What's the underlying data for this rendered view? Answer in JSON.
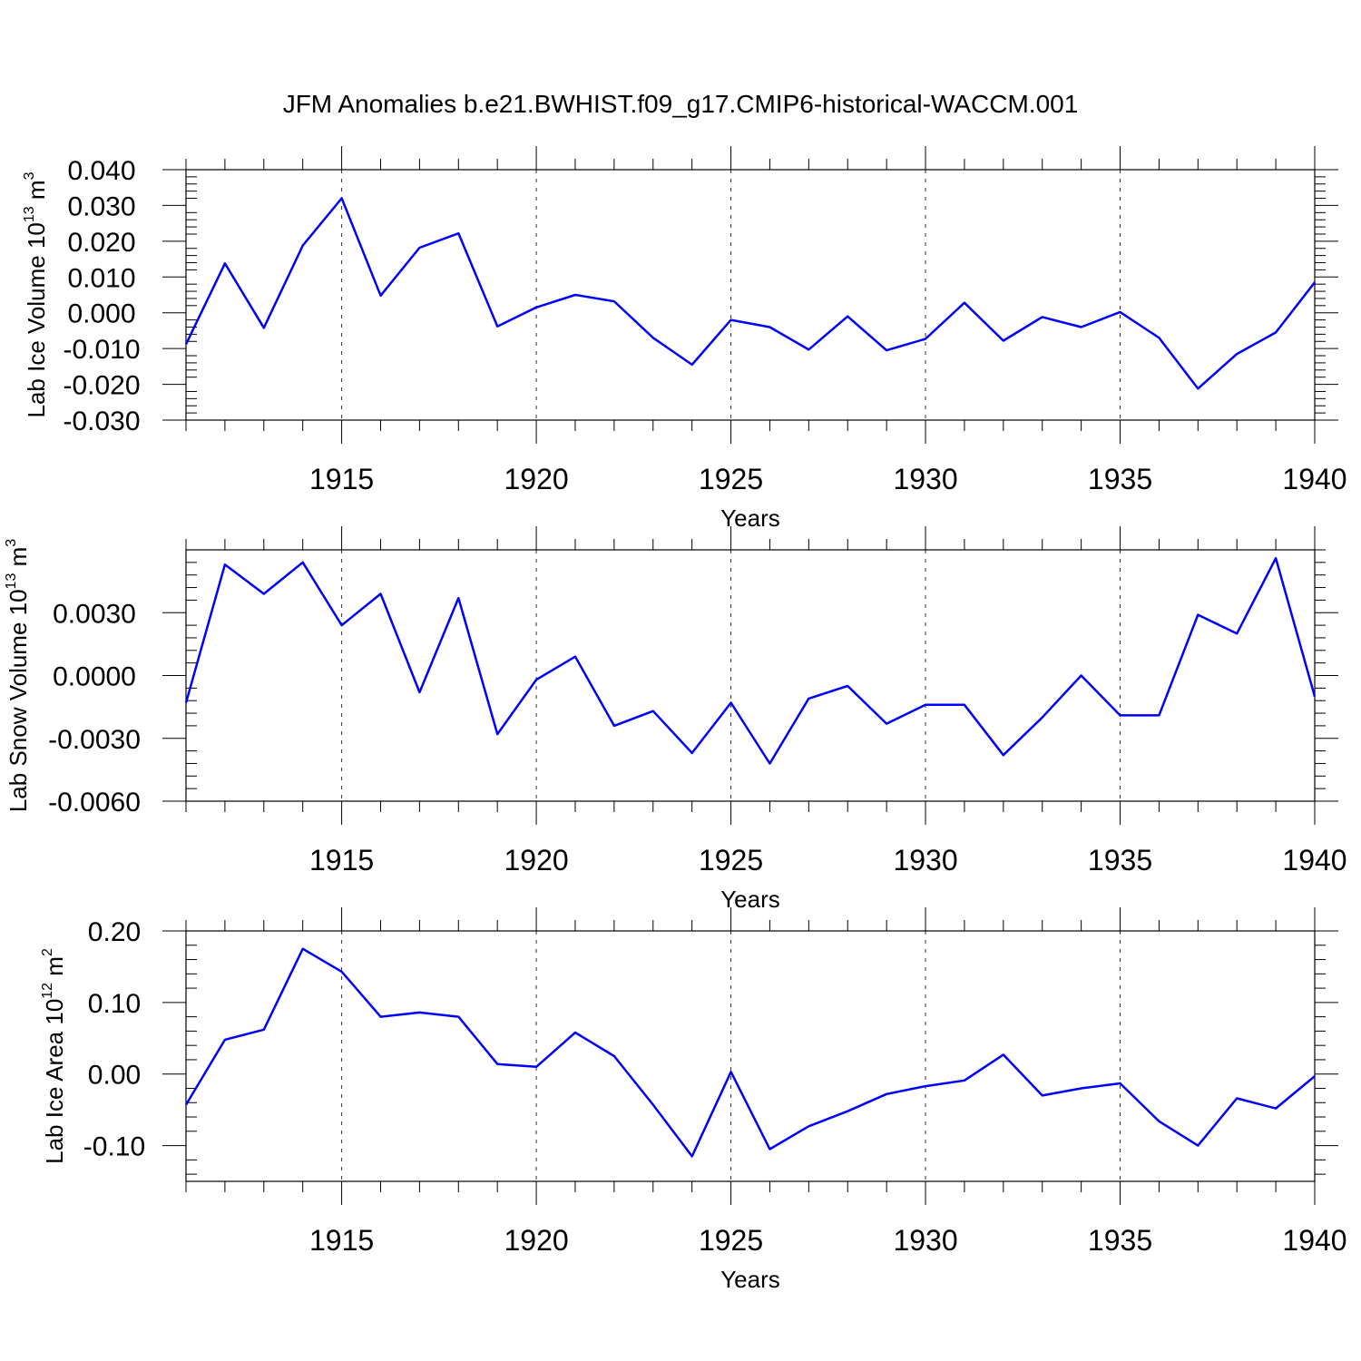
{
  "title": "JFM Anomalies b.e21.BWHIST.f09_g17.CMIP6-historical-WACCM.001",
  "colors": {
    "line": "#0000ff",
    "axis": "#000000",
    "grid": "#000000"
  },
  "chart_data": [
    {
      "type": "line",
      "xlabel": "Years",
      "ylabel": {
        "prefix": "Lab Ice Volume 10",
        "exponent": "13",
        "unit": " m",
        "unit_exponent": "3"
      },
      "xlim": [
        1911,
        1940
      ],
      "ylim": [
        -0.03,
        0.04
      ],
      "x_ticks": [
        1915,
        1920,
        1925,
        1930,
        1935,
        1940
      ],
      "x_tick_labels": [
        "1915",
        "1920",
        "1925",
        "1930",
        "1935",
        "1940"
      ],
      "y_ticks": [
        0.04,
        0.03,
        0.02,
        0.01,
        0.0,
        -0.01,
        -0.02,
        -0.03
      ],
      "y_tick_labels": [
        "0.040",
        "0.030",
        "0.020",
        "0.010",
        "0.000",
        "-0.010",
        "-0.020",
        "-0.030"
      ],
      "grid": "vertical dashed at major x ticks",
      "series": [
        {
          "x": [
            1911,
            1912,
            1913,
            1914,
            1915,
            1916,
            1917,
            1918,
            1919,
            1920,
            1921,
            1922,
            1923,
            1924,
            1925,
            1926,
            1927,
            1928,
            1929,
            1930,
            1931,
            1932,
            1933,
            1934,
            1935,
            1936,
            1937,
            1938,
            1939,
            1940
          ],
          "y": [
            -0.0088,
            0.0138,
            -0.0042,
            0.0188,
            0.032,
            0.0048,
            0.0182,
            0.0222,
            -0.0038,
            0.0015,
            0.005,
            0.0032,
            -0.007,
            -0.0145,
            -0.002,
            -0.004,
            -0.0103,
            -0.001,
            -0.0105,
            -0.0073,
            0.0028,
            -0.0078,
            -0.0012,
            -0.004,
            0.0002,
            -0.007,
            -0.0212,
            -0.0115,
            -0.0055,
            0.0085
          ]
        }
      ]
    },
    {
      "type": "line",
      "xlabel": "Years",
      "ylabel": {
        "prefix": "Lab Snow Volume 10",
        "exponent": "13",
        "unit": " m",
        "unit_exponent": "3"
      },
      "xlim": [
        1911,
        1940
      ],
      "ylim": [
        -0.006,
        0.006
      ],
      "x_ticks": [
        1915,
        1920,
        1925,
        1930,
        1935,
        1940
      ],
      "x_tick_labels": [
        "1915",
        "1920",
        "1925",
        "1930",
        "1935",
        "1940"
      ],
      "y_ticks": [
        0.003,
        0.0,
        -0.003,
        -0.006
      ],
      "y_tick_labels": [
        "0.0030",
        "0.0000",
        "-0.0030",
        "-0.0060"
      ],
      "grid": "vertical dashed at major x ticks",
      "series": [
        {
          "x": [
            1911,
            1912,
            1913,
            1914,
            1915,
            1916,
            1917,
            1918,
            1919,
            1920,
            1921,
            1922,
            1923,
            1924,
            1925,
            1926,
            1927,
            1928,
            1929,
            1930,
            1931,
            1932,
            1933,
            1934,
            1935,
            1936,
            1937,
            1938,
            1939,
            1940
          ],
          "y": [
            -0.0013,
            0.0053,
            0.0039,
            0.0054,
            0.0024,
            0.0039,
            -0.0008,
            0.0037,
            -0.0028,
            -0.0002,
            0.0009,
            -0.0024,
            -0.0017,
            -0.0037,
            -0.0013,
            -0.0042,
            -0.0011,
            -0.0005,
            -0.0023,
            -0.0014,
            -0.0014,
            -0.0038,
            -0.002,
            0.0,
            -0.0019,
            -0.0019,
            0.0029,
            0.002,
            0.0056,
            -0.001
          ]
        }
      ]
    },
    {
      "type": "line",
      "xlabel": "Years",
      "ylabel": {
        "prefix": "Lab Ice Area 10",
        "exponent": "12",
        "unit": " m",
        "unit_exponent": "2"
      },
      "xlim": [
        1911,
        1940
      ],
      "ylim": [
        -0.15,
        0.2
      ],
      "x_ticks": [
        1915,
        1920,
        1925,
        1930,
        1935,
        1940
      ],
      "x_tick_labels": [
        "1915",
        "1920",
        "1925",
        "1930",
        "1935",
        "1940"
      ],
      "y_ticks": [
        0.2,
        0.1,
        0.0,
        -0.1
      ],
      "y_tick_labels": [
        "0.20",
        "0.10",
        "0.00",
        "-0.10"
      ],
      "grid": "vertical dashed at major x ticks",
      "series": [
        {
          "x": [
            1911,
            1912,
            1913,
            1914,
            1915,
            1916,
            1917,
            1918,
            1919,
            1920,
            1921,
            1922,
            1923,
            1924,
            1925,
            1926,
            1927,
            1928,
            1929,
            1930,
            1931,
            1932,
            1933,
            1934,
            1935,
            1936,
            1937,
            1938,
            1939,
            1940
          ],
          "y": [
            -0.043,
            0.048,
            0.062,
            0.175,
            0.143,
            0.08,
            0.086,
            0.08,
            0.014,
            0.01,
            0.058,
            0.025,
            -0.043,
            -0.115,
            0.003,
            -0.105,
            -0.073,
            -0.052,
            -0.028,
            -0.017,
            -0.009,
            0.027,
            -0.03,
            -0.02,
            -0.013,
            -0.066,
            -0.1,
            -0.034,
            -0.048,
            -0.003
          ]
        }
      ]
    }
  ]
}
